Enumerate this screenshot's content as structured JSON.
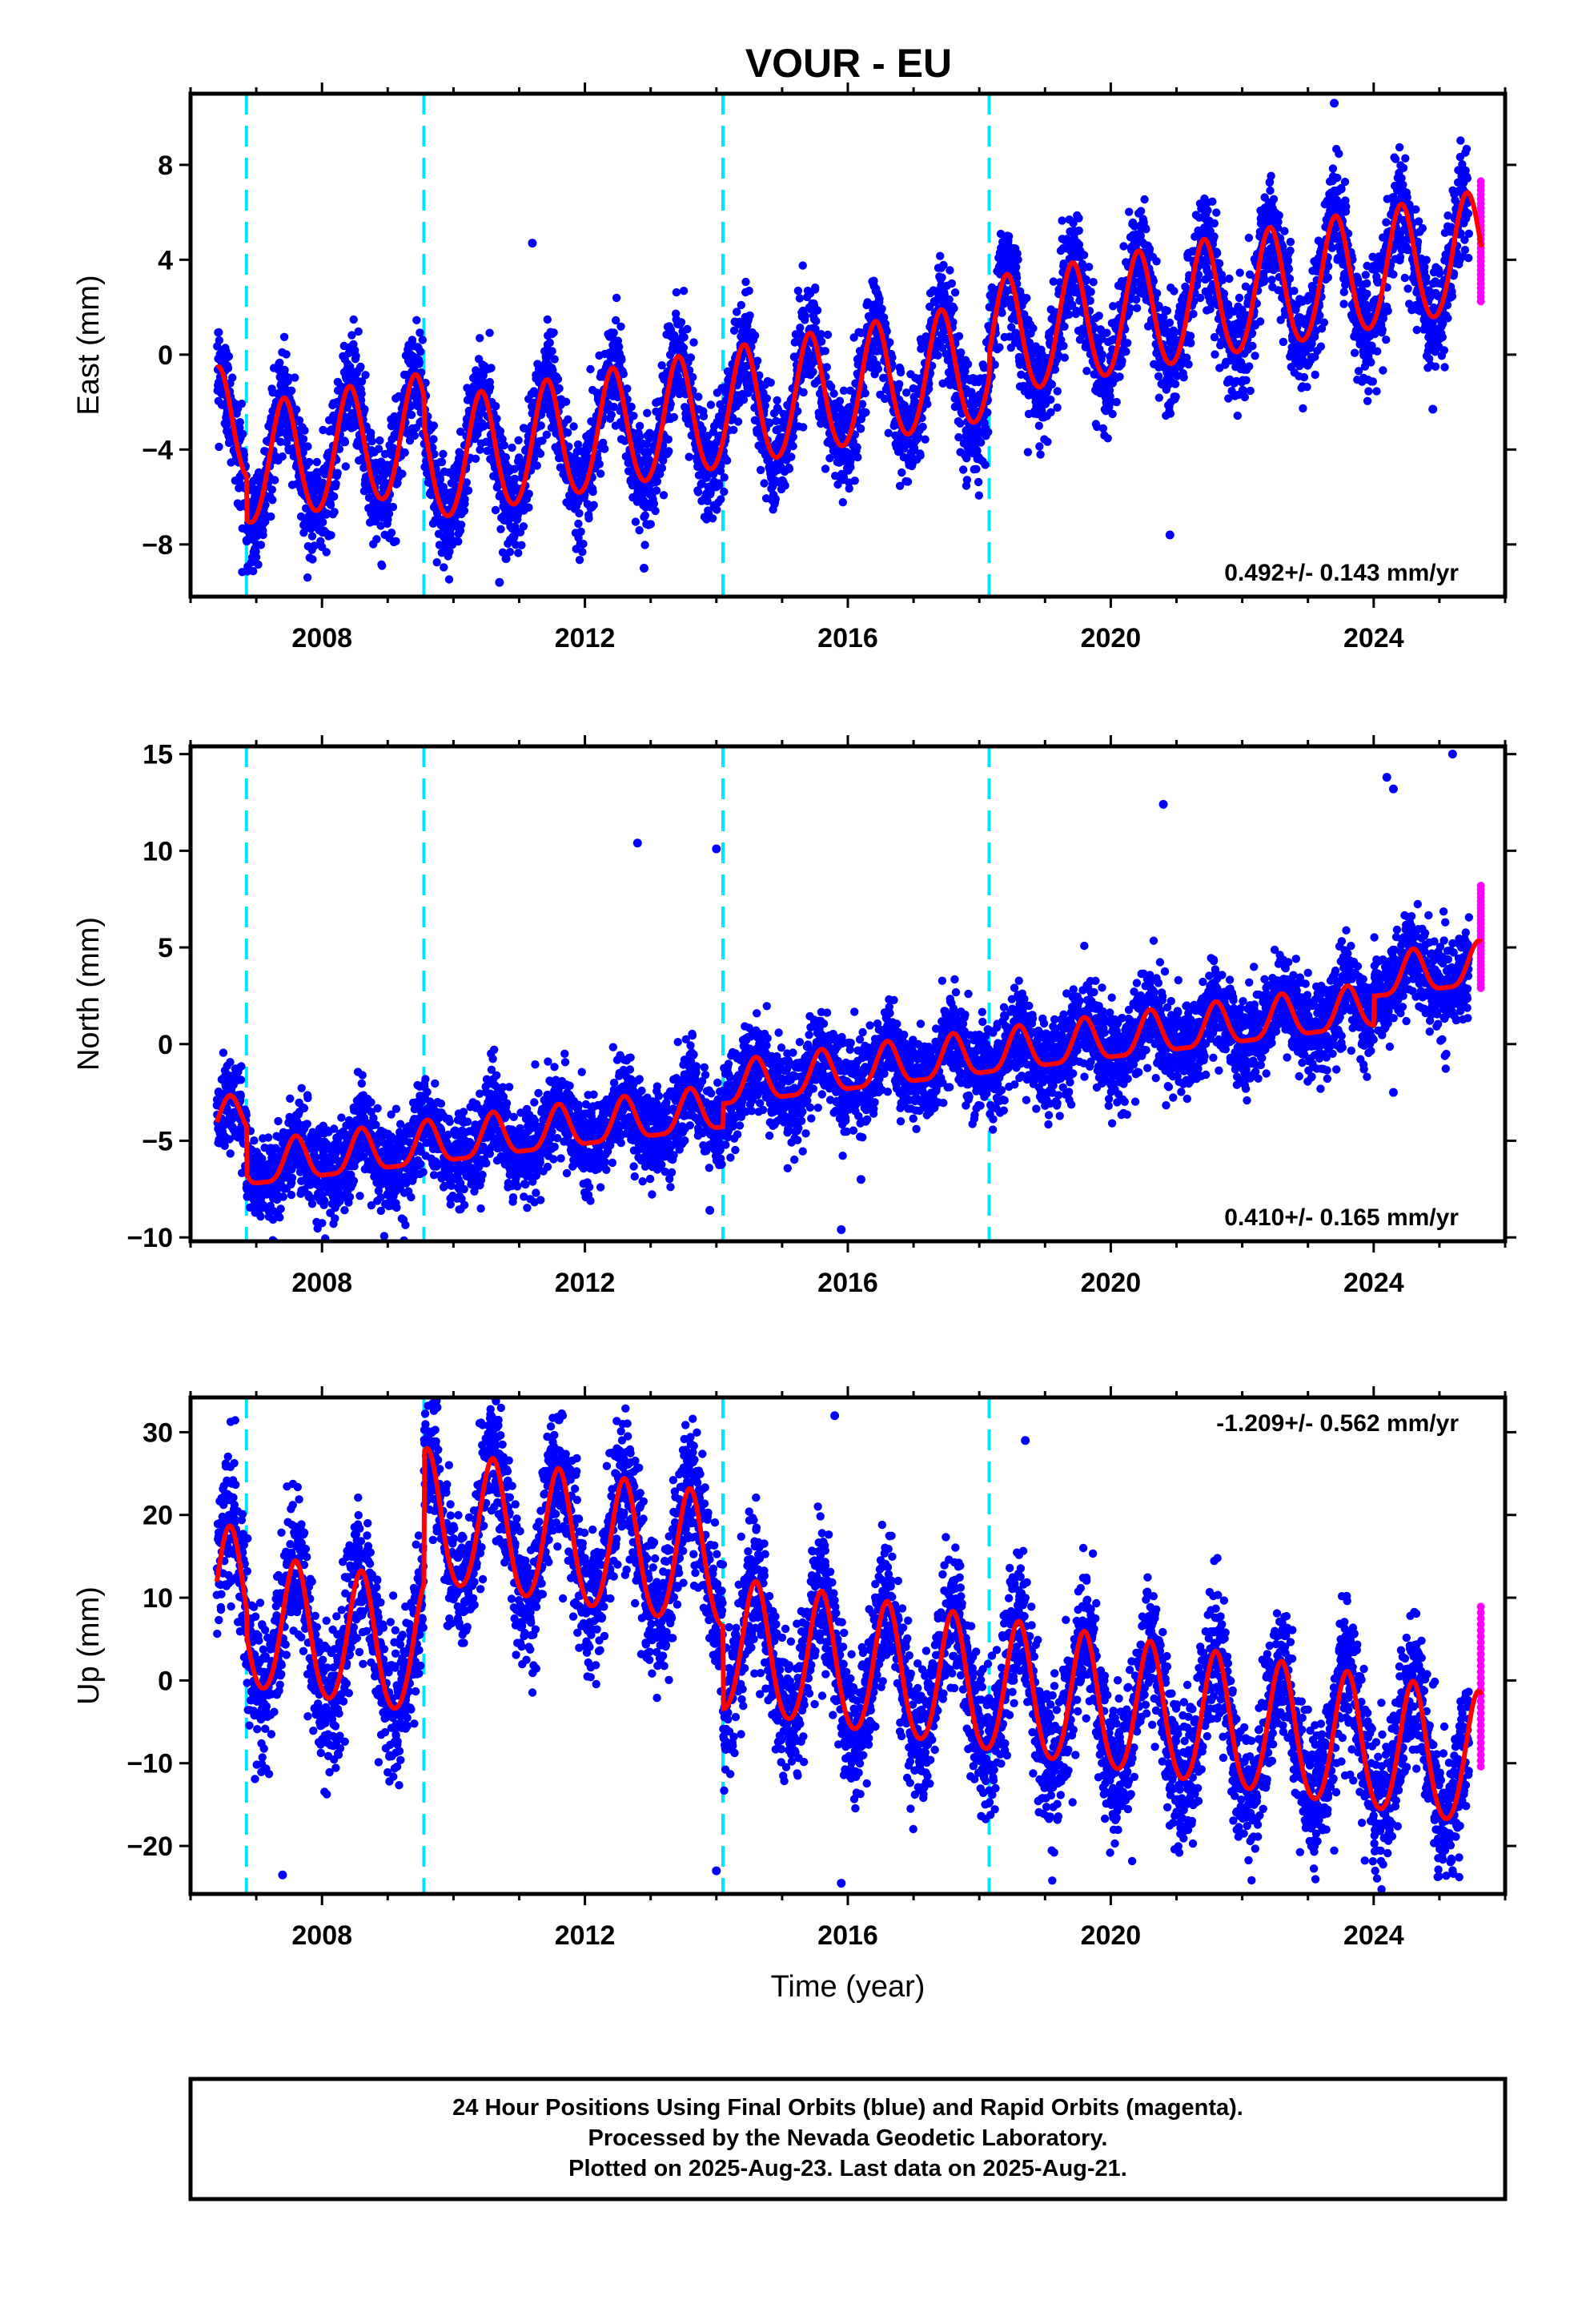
{
  "title": "VOUR - EU",
  "colors": {
    "final_points": "#0000ff",
    "rapid_points": "#ff00ff",
    "model": "#ff0000",
    "equipment_change": "#00e5ff",
    "frame": "#000000"
  },
  "footer": {
    "line1": "24 Hour Positions Using Final Orbits (blue) and Rapid Orbits (magenta).",
    "line2": "Processed by the Nevada Geodetic Laboratory.",
    "line3": "Plotted on 2025-Aug-23. Last data on 2025-Aug-21."
  },
  "chart_data": [
    {
      "type": "scatter",
      "component": "east",
      "ylabel": "East (mm)",
      "xlabel": "",
      "xlim": [
        2006.0,
        2026.0
      ],
      "ylim": [
        -10.2,
        11.0
      ],
      "xticks": [
        2008,
        2012,
        2016,
        2020,
        2024
      ],
      "yticks": [
        -8,
        -4,
        0,
        4,
        8
      ],
      "grid": false,
      "rate_label": "0.492+/- 0.143 mm/yr",
      "rate_position": "bottom-right",
      "equipment_changes": [
        2006.85,
        2009.55,
        2014.1,
        2018.15
      ],
      "data_start": 2006.4,
      "data_end": 2025.64,
      "rapid_start": 2025.45,
      "model": {
        "rate": 0.492,
        "intercept_2016": -0.5,
        "annual_amp": 2.5,
        "annual_phase_peak": 0.42,
        "semiannual_amp": 0.2,
        "offsets": [
          [
            2006.85,
            -1.8
          ],
          [
            2009.55,
            -1.2
          ],
          [
            2014.1,
            0.0
          ],
          [
            2018.15,
            1.0
          ]
        ]
      },
      "scatter_sigma": 1.1,
      "outliers": [
        [
          2010.7,
          -9.6
        ],
        [
          2012.9,
          -9.0
        ],
        [
          2020.9,
          -7.6
        ],
        [
          2011.2,
          4.7
        ],
        [
          2023.4,
          10.6
        ],
        [
          2024.9,
          -2.3
        ],
        [
          2010.8,
          -8.6
        ]
      ]
    },
    {
      "type": "scatter",
      "component": "north",
      "ylabel": "North (mm)",
      "xlabel": "",
      "xlim": [
        2006.0,
        2026.0
      ],
      "ylim": [
        -10.2,
        15.4
      ],
      "xticks": [
        2008,
        2012,
        2016,
        2020,
        2024
      ],
      "yticks": [
        -10,
        -5,
        0,
        5,
        10,
        15
      ],
      "grid": false,
      "rate_label": "0.410+/- 0.165 mm/yr",
      "rate_position": "bottom-right",
      "equipment_changes": [
        2006.85,
        2009.55,
        2014.1,
        2018.15
      ],
      "data_start": 2006.4,
      "data_end": 2025.64,
      "rapid_start": 2025.45,
      "model": {
        "rate": 0.41,
        "intercept_2016": 0.0,
        "annual_amp": 1.1,
        "annual_phase_peak": 0.6,
        "semiannual_amp": 0.3,
        "offsets": [
          [
            2006.85,
            -2.5
          ],
          [
            2009.55,
            0.0
          ],
          [
            2014.1,
            1.2
          ],
          [
            2018.15,
            0.0
          ],
          [
            2024.0,
            1.5
          ]
        ]
      },
      "scatter_sigma": 1.15,
      "outliers": [
        [
          2012.8,
          10.4
        ],
        [
          2014.0,
          10.1
        ],
        [
          2020.8,
          12.4
        ],
        [
          2024.2,
          13.8
        ],
        [
          2024.3,
          13.2
        ],
        [
          2025.2,
          15.0
        ],
        [
          2013.9,
          -8.6
        ],
        [
          2016.2,
          -7.0
        ],
        [
          2015.9,
          -9.6
        ],
        [
          2024.3,
          -2.5
        ]
      ]
    },
    {
      "type": "scatter",
      "component": "up",
      "ylabel": "Up (mm)",
      "xlabel": "Time (year)",
      "xlim": [
        2006.0,
        2026.0
      ],
      "ylim": [
        -25.8,
        34.2
      ],
      "xticks": [
        2008,
        2012,
        2016,
        2020,
        2024
      ],
      "yticks": [
        -20,
        -10,
        0,
        10,
        20,
        30
      ],
      "grid": false,
      "rate_label": "-1.209+/- 0.562 mm/yr",
      "rate_position": "top-right",
      "equipment_changes": [
        2006.85,
        2009.55,
        2014.1,
        2018.15
      ],
      "data_start": 2006.4,
      "data_end": 2025.64,
      "rapid_start": 2025.45,
      "model": {
        "rate": -1.209,
        "intercept_2016": 1.5,
        "annual_amp": 8.0,
        "annual_phase_peak": 0.6,
        "semiannual_amp": 0.8,
        "offsets": [
          [
            2006.85,
            -3.0
          ],
          [
            2009.55,
            16.0
          ],
          [
            2014.1,
            -10.0
          ],
          [
            2018.15,
            0.0
          ]
        ]
      },
      "scatter_sigma": 4.2,
      "outliers": [
        [
          2009.75,
          33.0
        ],
        [
          2011.6,
          31.5
        ],
        [
          2015.8,
          32.0
        ],
        [
          2018.7,
          29.0
        ],
        [
          2015.9,
          -24.5
        ],
        [
          2007.4,
          -23.5
        ],
        [
          2014.0,
          -23.0
        ]
      ]
    }
  ]
}
